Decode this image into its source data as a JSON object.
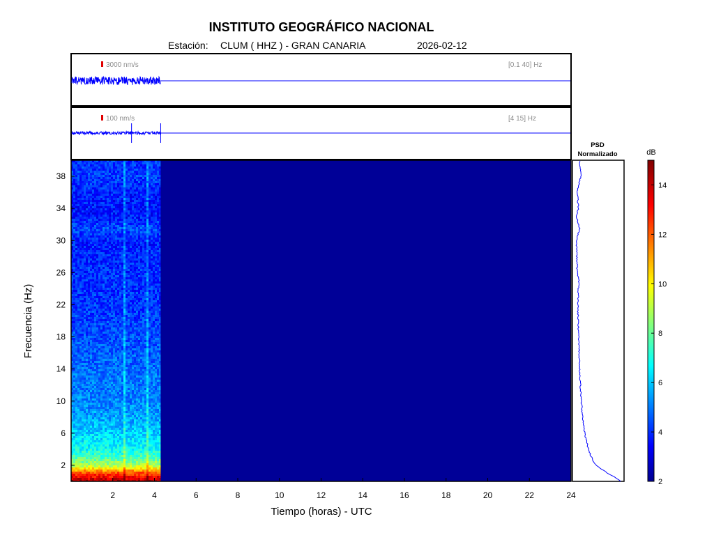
{
  "header": {
    "title": "INSTITUTO GEOGRÁFICO NACIONAL",
    "station_label": "Estación:",
    "station": "CLUM ( HHZ ) - GRAN CANARIA",
    "date": "2026-02-12"
  },
  "chart_data": [
    {
      "type": "line",
      "panel": "seismogram-broadband",
      "scale_label": "3000 nm/s",
      "filter_label": "[0.1 40] Hz",
      "x": [
        0,
        4.3,
        24
      ],
      "data_end_hours": 4.3,
      "series_color": "#0000ff"
    },
    {
      "type": "line",
      "panel": "seismogram-filtered",
      "scale_label": "100 nm/s",
      "filter_label": "[4 15] Hz",
      "x": [
        0,
        4.3,
        24
      ],
      "data_end_hours": 4.3,
      "spikes_hours": [
        2.9,
        4.3
      ],
      "series_color": "#0000ff"
    },
    {
      "type": "heatmap",
      "panel": "spectrogram",
      "xlabel": "Tiempo (horas) - UTC",
      "ylabel": "Frecuencia  (Hz)",
      "xlim": [
        0,
        24
      ],
      "ylim": [
        0,
        40
      ],
      "xticks": [
        2,
        4,
        6,
        8,
        10,
        12,
        14,
        16,
        18,
        20,
        22,
        24
      ],
      "yticks": [
        2,
        6,
        10,
        14,
        18,
        22,
        26,
        30,
        34,
        38
      ],
      "data_end_hours": 4.3,
      "frequency_profile_db": [
        {
          "f": 0,
          "db": 14.5
        },
        {
          "f": 1,
          "db": 12.5
        },
        {
          "f": 2,
          "db": 9.0
        },
        {
          "f": 3,
          "db": 7.8
        },
        {
          "f": 4,
          "db": 7.0
        },
        {
          "f": 6,
          "db": 6.3
        },
        {
          "f": 8,
          "db": 5.7
        },
        {
          "f": 10,
          "db": 5.3
        },
        {
          "f": 14,
          "db": 5.0
        },
        {
          "f": 18,
          "db": 4.6
        },
        {
          "f": 22,
          "db": 4.3
        },
        {
          "f": 26,
          "db": 4.2
        },
        {
          "f": 30,
          "db": 4.0
        },
        {
          "f": 31.5,
          "db": 4.6
        },
        {
          "f": 33,
          "db": 3.9
        },
        {
          "f": 36,
          "db": 4.0
        },
        {
          "f": 38,
          "db": 4.4
        },
        {
          "f": 40,
          "db": 4.2
        }
      ],
      "empty_db": 2.3
    },
    {
      "type": "line",
      "panel": "psd",
      "title_line1": "PSD",
      "title_line2": "Normalizado",
      "series_color": "#0000ff",
      "points": [
        {
          "f": 0,
          "v": 0.97
        },
        {
          "f": 0.5,
          "v": 0.85
        },
        {
          "f": 1,
          "v": 0.7
        },
        {
          "f": 2,
          "v": 0.45
        },
        {
          "f": 3,
          "v": 0.36
        },
        {
          "f": 4,
          "v": 0.3
        },
        {
          "f": 6,
          "v": 0.22
        },
        {
          "f": 8,
          "v": 0.18
        },
        {
          "f": 10,
          "v": 0.15
        },
        {
          "f": 14,
          "v": 0.12
        },
        {
          "f": 18,
          "v": 0.1
        },
        {
          "f": 22,
          "v": 0.08
        },
        {
          "f": 25,
          "v": 0.1
        },
        {
          "f": 26,
          "v": 0.07
        },
        {
          "f": 30,
          "v": 0.05
        },
        {
          "f": 31.5,
          "v": 0.12
        },
        {
          "f": 33,
          "v": 0.05
        },
        {
          "f": 34,
          "v": 0.09
        },
        {
          "f": 36,
          "v": 0.07
        },
        {
          "f": 38,
          "v": 0.14
        },
        {
          "f": 40,
          "v": 0.12
        }
      ]
    },
    {
      "type": "heatmap",
      "panel": "colorbar",
      "unit": "dB",
      "range": [
        2,
        15
      ],
      "ticks": [
        2,
        4,
        6,
        8,
        10,
        12,
        14
      ],
      "colormap": "jet"
    }
  ]
}
